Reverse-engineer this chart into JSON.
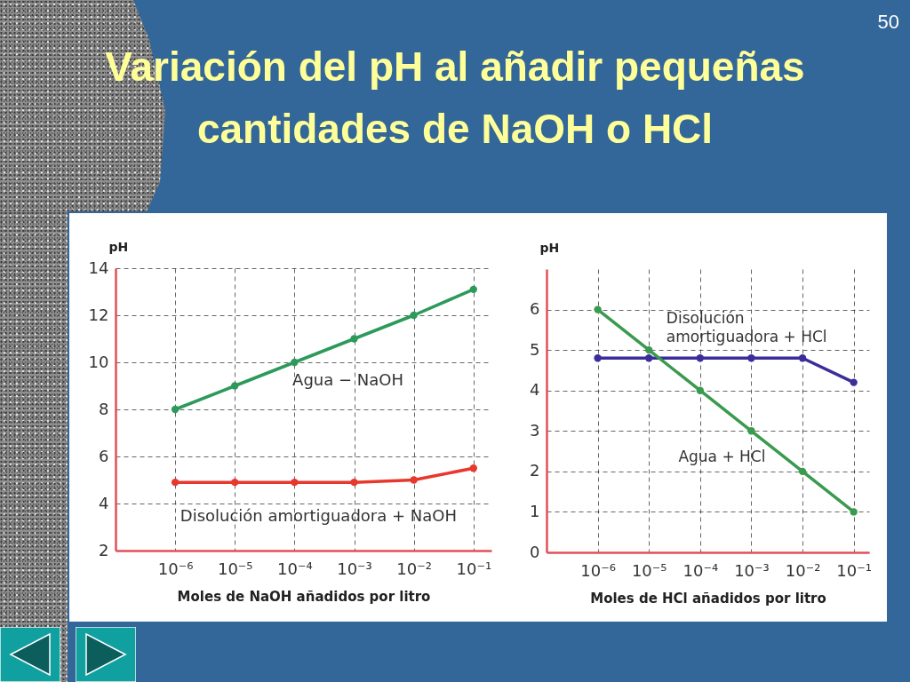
{
  "chart_data": [
    {
      "type": "line",
      "title": "Variación del pH al añadir pequeñas cantidades de NaOH o HCl",
      "annotations": [
        "50"
      ],
      "xlabel": "Moles de NaOH añadidos por litro",
      "ylabel": "pH",
      "x": [
        1e-06,
        1e-05,
        0.0001,
        0.001,
        0.01,
        0.1
      ],
      "series": [
        {
          "name": "Agua − NaOH",
          "color": "#2b9a5a",
          "values": [
            8,
            9,
            10,
            11,
            12,
            13.1
          ]
        },
        {
          "name": "Disolución amortiguadora + NaOH",
          "color": "#e8372c",
          "values": [
            4.9,
            4.9,
            4.9,
            4.9,
            5,
            5.5
          ]
        }
      ],
      "log": "x",
      "xlim": [
        1e-07,
        0.2
      ],
      "xticks": [
        {
          "value": 1e-06,
          "label": "10⁻⁶"
        },
        {
          "value": 1e-05,
          "label": "10⁻⁵"
        },
        {
          "value": 0.0001,
          "label": "10⁻⁴"
        },
        {
          "value": 0.001,
          "label": "10⁻³"
        },
        {
          "value": 0.01,
          "label": "10⁻²"
        },
        {
          "value": 0.1,
          "label": "10⁻¹"
        }
      ],
      "ylim": [
        2,
        14
      ],
      "yticks": [
        2,
        4,
        6,
        8,
        10,
        12,
        14
      ],
      "grid": true,
      "marker": "circle",
      "line_style": "solid"
    },
    {
      "type": "line",
      "xlabel": "Moles de HCl añadidos por litro",
      "ylabel": "pH",
      "x": [
        1e-06,
        1e-05,
        0.0001,
        0.001,
        0.01,
        0.1
      ],
      "series": [
        {
          "name": "Disolución amortiguadora + HCl",
          "color": "#3b2d9b",
          "values": [
            4.8,
            4.8,
            4.8,
            4.8,
            4.8,
            4.2
          ]
        },
        {
          "name": "Agua + HCl",
          "color": "#3a9a4e",
          "values": [
            6,
            5,
            4,
            3,
            2,
            1
          ]
        }
      ],
      "log": "x",
      "xlim": [
        1e-07,
        0.2
      ],
      "xticks": [
        {
          "value": 1e-06,
          "label": "10⁻⁶"
        },
        {
          "value": 1e-05,
          "label": "10⁻⁵"
        },
        {
          "value": 0.0001,
          "label": "10⁻⁴"
        },
        {
          "value": 0.001,
          "label": "10⁻³"
        },
        {
          "value": 0.01,
          "label": "10⁻²"
        },
        {
          "value": 0.1,
          "label": "10⁻¹"
        }
      ],
      "ylim": [
        0,
        7
      ],
      "yticks": [
        0,
        1,
        2,
        3,
        4,
        5,
        6
      ],
      "grid": true,
      "marker": "circle",
      "line_style": "solid"
    }
  ]
}
